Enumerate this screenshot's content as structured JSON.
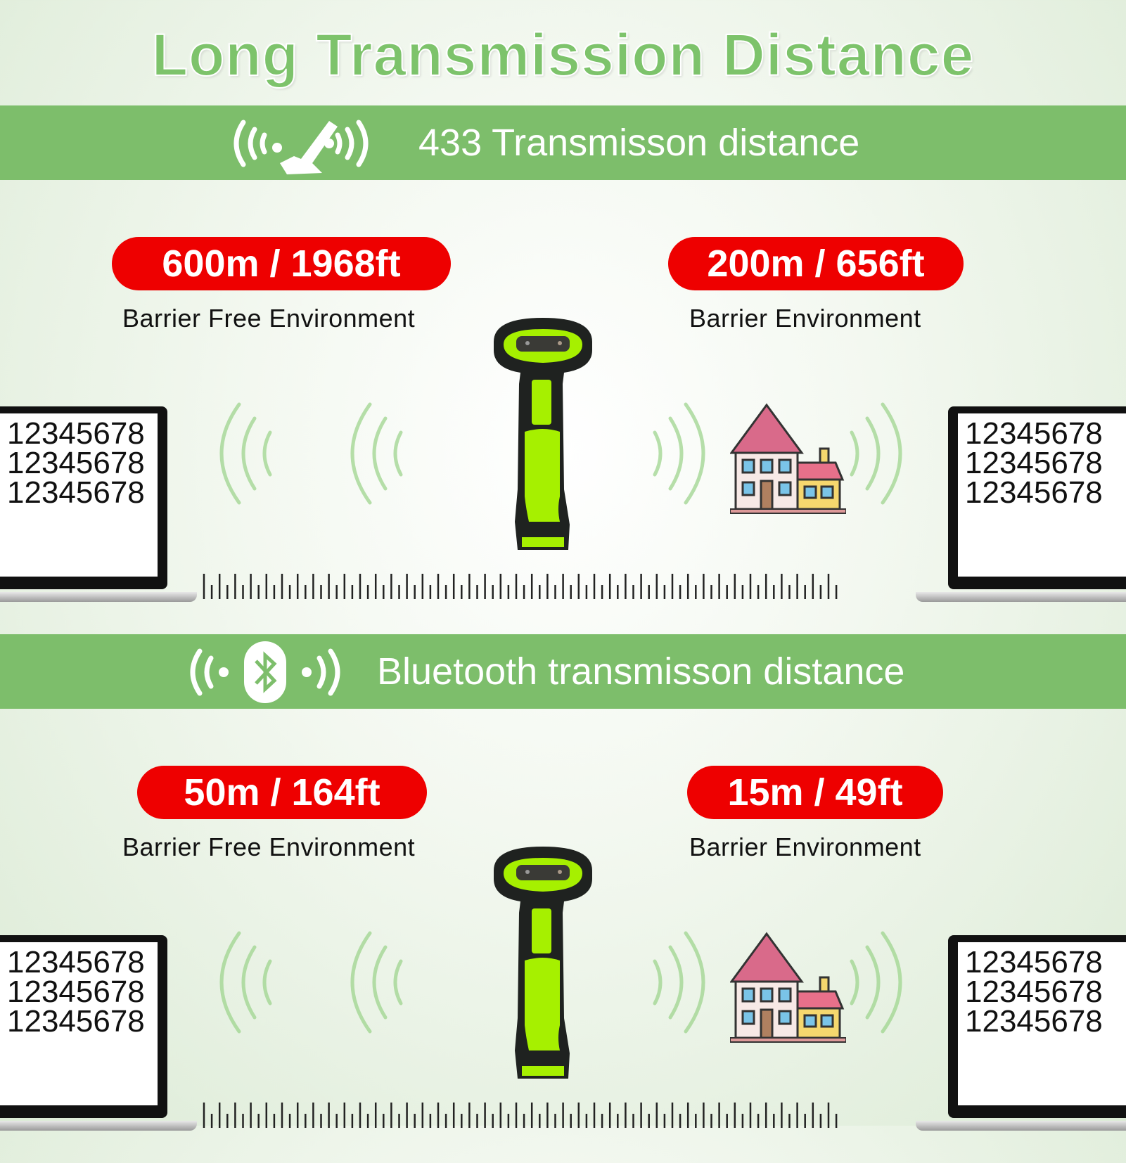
{
  "title": "Long Transmission Distance",
  "colors": {
    "accent_green": "#7dbe6b",
    "badge_red": "#ee0000",
    "scanner_green": "#a6f000"
  },
  "sections": [
    {
      "banner_icon": "remote-joystick-signal-icon",
      "banner_text": "433 Transmisson distance",
      "left": {
        "distance": "600m / 1968ft",
        "environment": "Barrier Free Environment"
      },
      "right": {
        "distance": "200m / 656ft",
        "environment": "Barrier Environment"
      },
      "screen_lines": [
        "12345678",
        "12345678",
        "12345678"
      ]
    },
    {
      "banner_icon": "bluetooth-signal-icon",
      "banner_text": "Bluetooth transmisson distance",
      "left": {
        "distance": "50m / 164ft",
        "environment": "Barrier Free Environment"
      },
      "right": {
        "distance": "15m / 49ft",
        "environment": "Barrier Environment"
      },
      "screen_lines": [
        "12345678",
        "12345678",
        "12345678"
      ]
    }
  ]
}
